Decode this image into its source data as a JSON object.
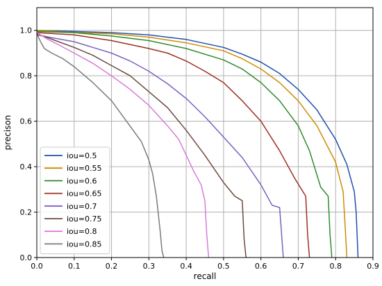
{
  "chart_data": {
    "type": "line",
    "title": "",
    "xlabel": "recall",
    "ylabel": "precison",
    "xlim": [
      0.0,
      0.9
    ],
    "ylim": [
      0.0,
      1.1
    ],
    "xticks": [
      "0.0",
      "0.1",
      "0.2",
      "0.3",
      "0.4",
      "0.5",
      "0.6",
      "0.7",
      "0.8",
      "0.9"
    ],
    "yticks": [
      "0.0",
      "0.2",
      "0.4",
      "0.6",
      "0.8",
      "1.0"
    ],
    "grid": true,
    "legend_position": "lower-left",
    "series": [
      {
        "name": "iou=0.5",
        "color": "#1f4fa8",
        "points": [
          [
            0.0,
            1.0
          ],
          [
            0.1,
            0.995
          ],
          [
            0.2,
            0.99
          ],
          [
            0.3,
            0.98
          ],
          [
            0.4,
            0.96
          ],
          [
            0.5,
            0.925
          ],
          [
            0.55,
            0.895
          ],
          [
            0.6,
            0.86
          ],
          [
            0.65,
            0.81
          ],
          [
            0.7,
            0.74
          ],
          [
            0.75,
            0.65
          ],
          [
            0.8,
            0.52
          ],
          [
            0.83,
            0.41
          ],
          [
            0.85,
            0.29
          ],
          [
            0.855,
            0.2
          ],
          [
            0.86,
            0.0
          ]
        ]
      },
      {
        "name": "iou=0.55",
        "color": "#cc8c00",
        "points": [
          [
            0.0,
            1.0
          ],
          [
            0.1,
            0.99
          ],
          [
            0.2,
            0.985
          ],
          [
            0.3,
            0.97
          ],
          [
            0.4,
            0.945
          ],
          [
            0.5,
            0.91
          ],
          [
            0.55,
            0.875
          ],
          [
            0.6,
            0.83
          ],
          [
            0.65,
            0.77
          ],
          [
            0.7,
            0.69
          ],
          [
            0.75,
            0.58
          ],
          [
            0.8,
            0.42
          ],
          [
            0.82,
            0.29
          ],
          [
            0.825,
            0.15
          ],
          [
            0.83,
            0.0
          ]
        ]
      },
      {
        "name": "iou=0.6",
        "color": "#2e8b2e",
        "points": [
          [
            0.0,
            0.995
          ],
          [
            0.1,
            0.99
          ],
          [
            0.2,
            0.975
          ],
          [
            0.3,
            0.955
          ],
          [
            0.4,
            0.92
          ],
          [
            0.5,
            0.87
          ],
          [
            0.55,
            0.83
          ],
          [
            0.6,
            0.77
          ],
          [
            0.65,
            0.69
          ],
          [
            0.7,
            0.58
          ],
          [
            0.73,
            0.47
          ],
          [
            0.76,
            0.31
          ],
          [
            0.78,
            0.27
          ],
          [
            0.785,
            0.1
          ],
          [
            0.79,
            0.0
          ]
        ]
      },
      {
        "name": "iou=0.65",
        "color": "#9c2e1f",
        "points": [
          [
            0.0,
            0.99
          ],
          [
            0.1,
            0.98
          ],
          [
            0.2,
            0.955
          ],
          [
            0.3,
            0.92
          ],
          [
            0.35,
            0.9
          ],
          [
            0.4,
            0.865
          ],
          [
            0.45,
            0.82
          ],
          [
            0.5,
            0.77
          ],
          [
            0.55,
            0.69
          ],
          [
            0.6,
            0.6
          ],
          [
            0.65,
            0.47
          ],
          [
            0.69,
            0.35
          ],
          [
            0.72,
            0.27
          ],
          [
            0.725,
            0.1
          ],
          [
            0.73,
            0.0
          ]
        ]
      },
      {
        "name": "iou=0.7",
        "color": "#7b5ec2",
        "points": [
          [
            0.0,
            0.98
          ],
          [
            0.05,
            0.965
          ],
          [
            0.1,
            0.95
          ],
          [
            0.15,
            0.925
          ],
          [
            0.2,
            0.9
          ],
          [
            0.25,
            0.865
          ],
          [
            0.3,
            0.82
          ],
          [
            0.35,
            0.765
          ],
          [
            0.4,
            0.7
          ],
          [
            0.45,
            0.62
          ],
          [
            0.5,
            0.53
          ],
          [
            0.55,
            0.44
          ],
          [
            0.6,
            0.32
          ],
          [
            0.63,
            0.23
          ],
          [
            0.65,
            0.22
          ],
          [
            0.66,
            0.0
          ]
        ]
      },
      {
        "name": "iou=0.75",
        "color": "#6b4a3e",
        "points": [
          [
            0.0,
            0.985
          ],
          [
            0.05,
            0.955
          ],
          [
            0.1,
            0.925
          ],
          [
            0.15,
            0.89
          ],
          [
            0.2,
            0.845
          ],
          [
            0.25,
            0.8
          ],
          [
            0.3,
            0.73
          ],
          [
            0.35,
            0.66
          ],
          [
            0.4,
            0.56
          ],
          [
            0.45,
            0.45
          ],
          [
            0.5,
            0.33
          ],
          [
            0.53,
            0.27
          ],
          [
            0.55,
            0.25
          ],
          [
            0.555,
            0.08
          ],
          [
            0.56,
            0.0
          ]
        ]
      },
      {
        "name": "iou=0.8",
        "color": "#d87ad8",
        "points": [
          [
            0.0,
            0.99
          ],
          [
            0.03,
            0.96
          ],
          [
            0.06,
            0.935
          ],
          [
            0.1,
            0.9
          ],
          [
            0.15,
            0.855
          ],
          [
            0.2,
            0.8
          ],
          [
            0.25,
            0.74
          ],
          [
            0.3,
            0.67
          ],
          [
            0.35,
            0.58
          ],
          [
            0.38,
            0.52
          ],
          [
            0.4,
            0.45
          ],
          [
            0.42,
            0.38
          ],
          [
            0.44,
            0.32
          ],
          [
            0.45,
            0.25
          ],
          [
            0.455,
            0.1
          ],
          [
            0.46,
            0.0
          ]
        ]
      },
      {
        "name": "iou=0.85",
        "color": "#7a7a7a",
        "points": [
          [
            0.0,
            0.985
          ],
          [
            0.01,
            0.95
          ],
          [
            0.02,
            0.92
          ],
          [
            0.04,
            0.9
          ],
          [
            0.07,
            0.875
          ],
          [
            0.1,
            0.84
          ],
          [
            0.15,
            0.77
          ],
          [
            0.2,
            0.69
          ],
          [
            0.24,
            0.6
          ],
          [
            0.28,
            0.51
          ],
          [
            0.3,
            0.43
          ],
          [
            0.31,
            0.37
          ],
          [
            0.32,
            0.27
          ],
          [
            0.33,
            0.12
          ],
          [
            0.335,
            0.03
          ],
          [
            0.34,
            0.0
          ]
        ]
      }
    ]
  }
}
